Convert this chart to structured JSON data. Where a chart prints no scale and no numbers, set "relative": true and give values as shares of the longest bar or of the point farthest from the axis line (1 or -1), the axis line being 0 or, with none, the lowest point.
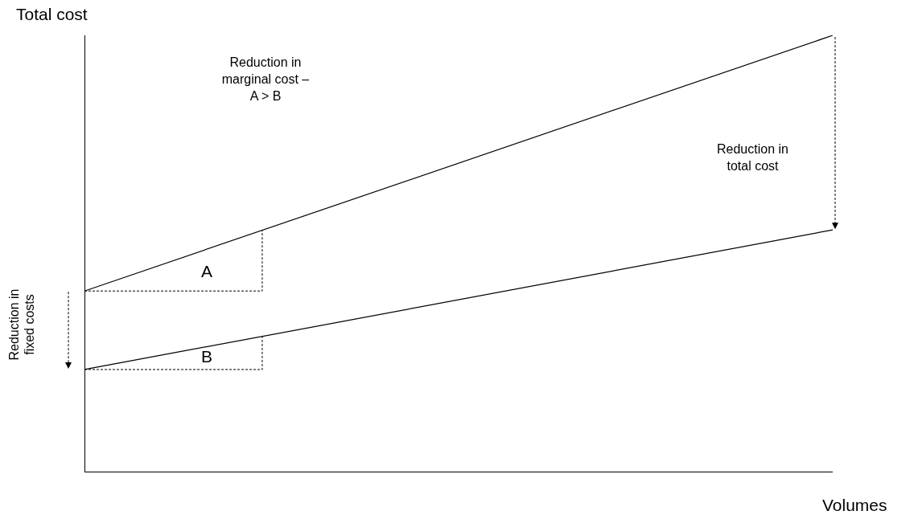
{
  "chart_data": {
    "type": "line",
    "relative": true,
    "ylabel": "Total cost",
    "xlabel": "Volumes",
    "categories": [
      null,
      null
    ],
    "series": [
      {
        "color": "#000000",
        "values": [
          0.414,
          1
        ]
      },
      {
        "color": "#000000",
        "values": [
          0.234,
          0.554
        ]
      }
    ],
    "annotations": [
      "Reduction in marginal cost – A > B",
      "Reduction in total cost",
      "Reduction in fixed costs",
      "A",
      "B"
    ]
  }
}
